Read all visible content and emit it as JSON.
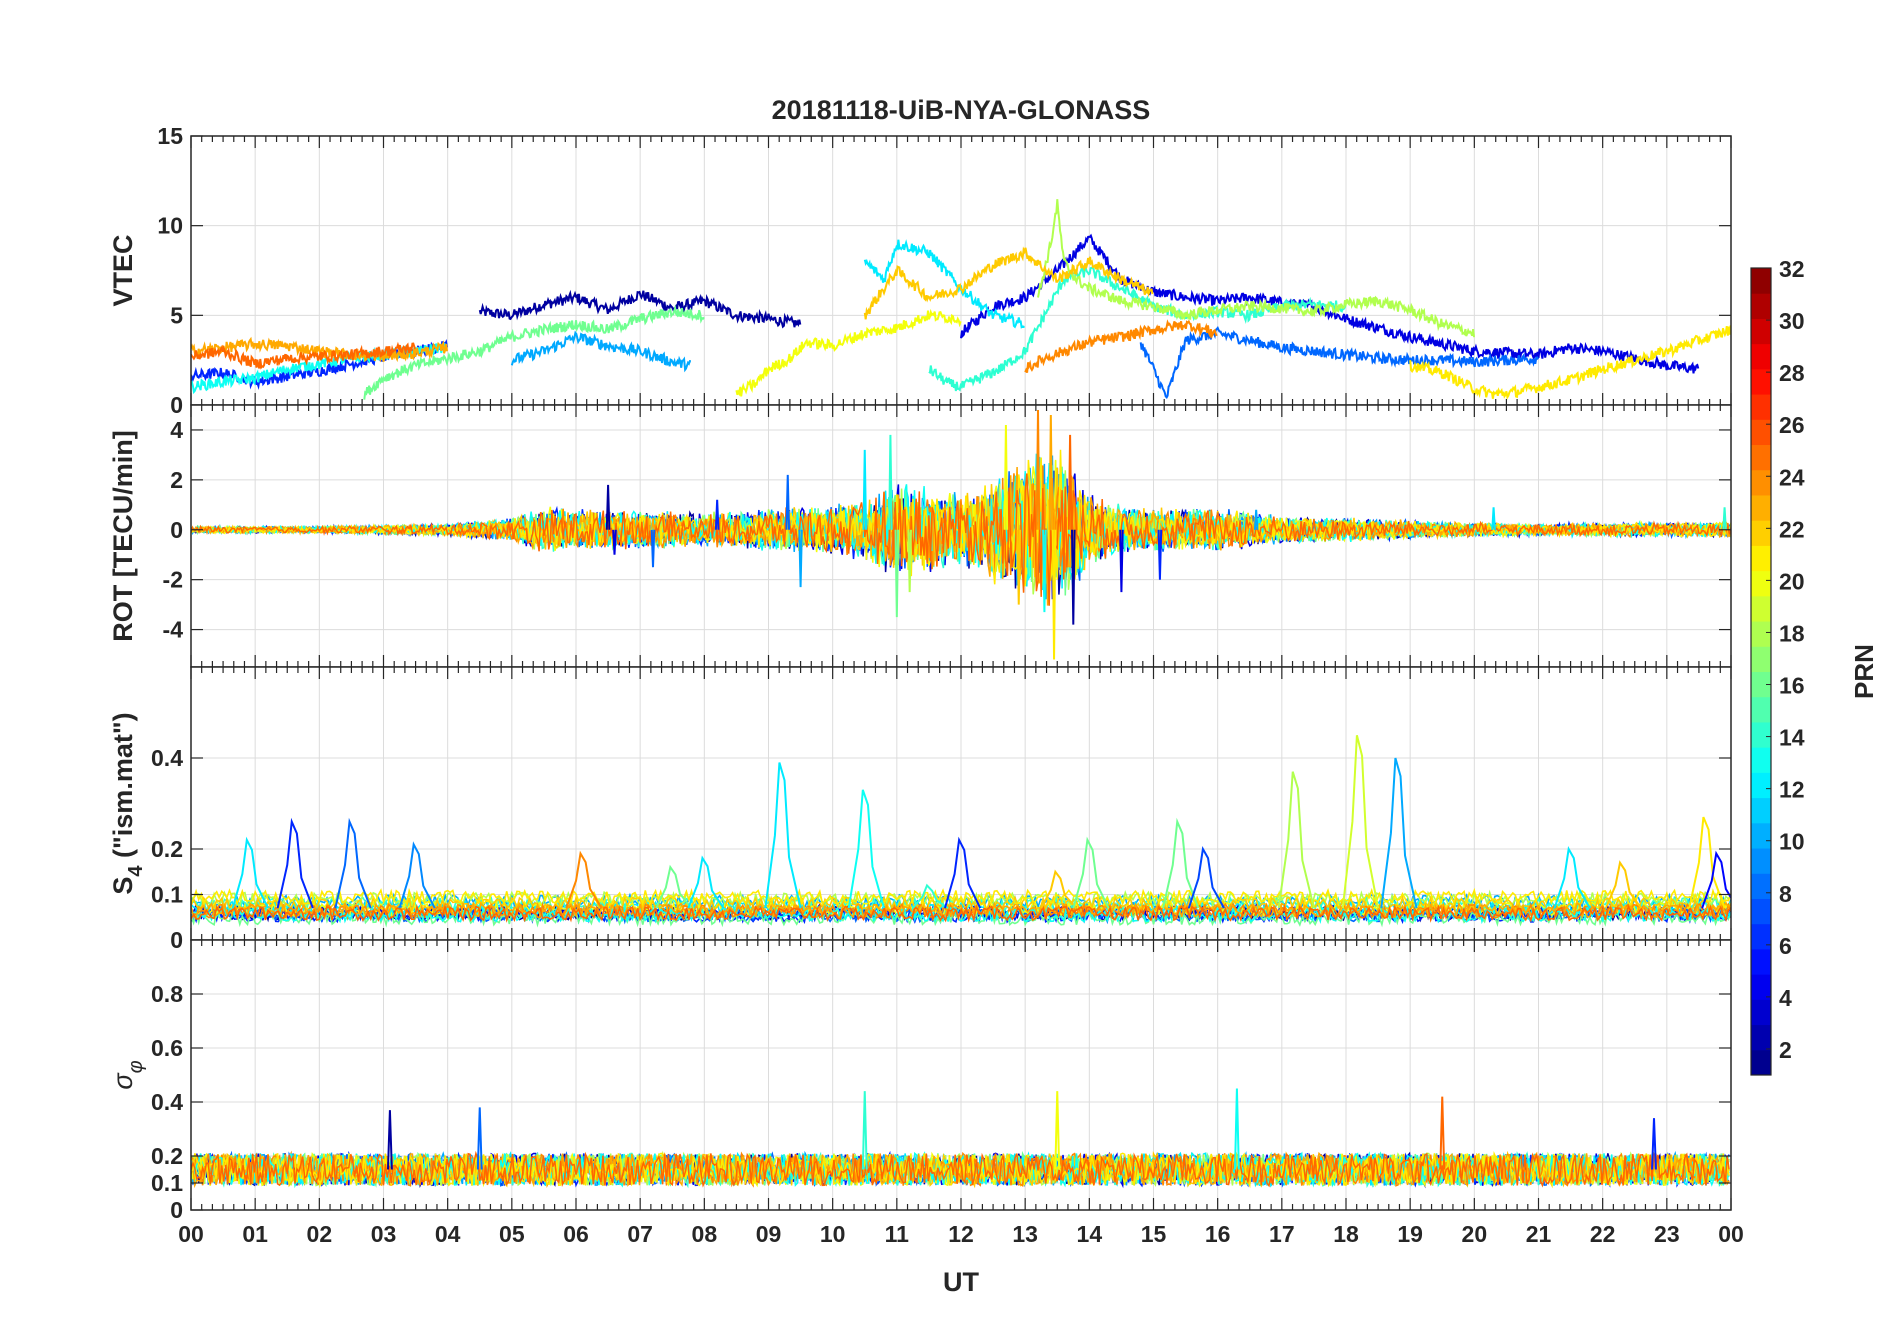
{
  "chart_data": {
    "type": "line",
    "title": "20181118-UiB-NYA-GLONASS",
    "xlabel": "UT",
    "x_ticks": [
      "00",
      "01",
      "02",
      "03",
      "04",
      "05",
      "06",
      "07",
      "08",
      "09",
      "10",
      "11",
      "12",
      "13",
      "14",
      "15",
      "16",
      "17",
      "18",
      "19",
      "20",
      "21",
      "22",
      "23",
      "00"
    ],
    "xlim": [
      0,
      24
    ],
    "grid": true,
    "panels": [
      {
        "id": "vtec",
        "ylabel": "VTEC",
        "ylim": [
          0,
          15
        ],
        "yticks": [
          0,
          5,
          10,
          15
        ],
        "ytick_labels": [
          "0",
          "5",
          "10",
          "15"
        ],
        "series": [
          {
            "prn": 2,
            "x": [
              4.5,
              5,
              5.5,
              6,
              6.5,
              7,
              7.5,
              8,
              8.5,
              9,
              9.5
            ],
            "y": [
              5.2,
              5.0,
              5.6,
              6.0,
              5.3,
              6.2,
              5.4,
              5.8,
              5.0,
              4.8,
              4.5
            ]
          },
          {
            "prn": 4,
            "x": [
              12,
              12.5,
              13,
              13.5,
              14,
              14.5,
              15,
              15.5,
              16,
              16.5,
              17,
              17.5,
              18,
              18.5,
              19,
              19.5,
              20,
              20.5,
              21,
              21.5,
              22,
              22.5,
              23,
              23.5
            ],
            "y": [
              4.0,
              5.5,
              6.0,
              7.5,
              9.3,
              7.0,
              6.3,
              6.0,
              5.8,
              6.0,
              5.7,
              5.5,
              4.8,
              4.3,
              3.8,
              3.4,
              3.0,
              2.9,
              2.8,
              3.2,
              3.0,
              2.6,
              2.2,
              2.0
            ]
          },
          {
            "prn": 6,
            "x": [
              0,
              0.5,
              1,
              1.5,
              2,
              2.5,
              3,
              3.5,
              4
            ],
            "y": [
              1.6,
              1.8,
              1.3,
              1.6,
              1.9,
              2.3,
              2.7,
              3.0,
              3.3
            ]
          },
          {
            "prn": 8,
            "x": [
              14.8,
              15,
              15.2,
              15.5,
              16,
              16.5,
              17,
              17.5,
              18,
              18.5,
              19,
              19.5,
              20,
              20.5,
              21
            ],
            "y": [
              3.5,
              2.0,
              0.4,
              3.6,
              4.0,
              3.6,
              3.2,
              3.0,
              2.8,
              2.6,
              2.5,
              2.5,
              2.4,
              2.5,
              2.6
            ]
          },
          {
            "prn": 10,
            "x": [
              5,
              5.5,
              6,
              6.5,
              7,
              7.5,
              7.8
            ],
            "y": [
              2.5,
              3.0,
              3.8,
              3.3,
              3.0,
              2.4,
              2.2
            ]
          },
          {
            "prn": 12,
            "x": [
              10.5,
              10.8,
              11,
              11.5,
              12,
              12.5,
              13
            ],
            "y": [
              8.0,
              7.0,
              9.0,
              8.5,
              6.5,
              5.0,
              4.5
            ]
          },
          {
            "prn": 13,
            "x": [
              0,
              0.5,
              1,
              1.5,
              2,
              2.5,
              3,
              3.5,
              4
            ],
            "y": [
              1.0,
              1.3,
              1.5,
              2.0,
              2.3,
              2.6,
              2.8,
              3.0,
              3.2
            ]
          },
          {
            "prn": 14,
            "x": [
              11.5,
              11.8,
              12,
              12.3,
              12.6,
              13,
              13.3,
              13.6,
              14,
              14.5,
              15,
              15.5,
              16,
              16.5,
              17,
              17.5,
              18
            ],
            "y": [
              2.0,
              1.2,
              1.0,
              1.5,
              2.0,
              3.0,
              5.0,
              7.0,
              7.5,
              6.5,
              5.5,
              5.0,
              5.2,
              5.0,
              5.5,
              5.6,
              5.5
            ]
          },
          {
            "prn": 16,
            "x": [
              2.7,
              3,
              3.5,
              4,
              4.5,
              5,
              5.5,
              6,
              6.5,
              7,
              7.5,
              8
            ],
            "y": [
              0.6,
              1.5,
              2.2,
              2.6,
              3.0,
              3.8,
              4.2,
              4.5,
              4.2,
              4.8,
              5.2,
              5.0
            ]
          },
          {
            "prn": 18,
            "x": [
              13.2,
              13.4,
              13.5,
              13.6,
              13.8,
              14,
              14.5,
              15,
              15.5,
              16,
              16.5,
              17,
              17.5,
              18,
              18.5,
              19,
              19.5,
              20
            ],
            "y": [
              6.0,
              9.0,
              11.2,
              8.0,
              7.0,
              6.5,
              5.8,
              5.5,
              5.0,
              5.3,
              5.5,
              5.4,
              5.2,
              5.6,
              5.8,
              5.3,
              4.5,
              4.0
            ]
          },
          {
            "prn": 20,
            "x": [
              8.5,
              8.8,
              9,
              9.3,
              9.6,
              10,
              10.5,
              11,
              11.5,
              12
            ],
            "y": [
              0.6,
              1.2,
              2.0,
              2.5,
              3.5,
              3.3,
              4.0,
              4.3,
              5.0,
              4.8
            ]
          },
          {
            "prn": 21,
            "x": [
              19,
              19.5,
              20,
              20.3,
              20.6,
              21,
              21.5,
              22,
              22.5,
              23,
              23.5,
              24
            ],
            "y": [
              2.2,
              1.8,
              0.9,
              0.6,
              0.7,
              1.0,
              1.4,
              2.0,
              2.5,
              3.0,
              3.6,
              4.2
            ]
          },
          {
            "prn": 22,
            "x": [
              10.5,
              11,
              11.5,
              12,
              12.5,
              13,
              13.5,
              14,
              14.5,
              15
            ],
            "y": [
              5.0,
              7.5,
              6.0,
              6.5,
              7.8,
              8.5,
              7.0,
              8.0,
              7.0,
              6.2
            ]
          },
          {
            "prn": 23,
            "x": [
              0,
              0.5,
              1,
              1.5,
              2,
              2.5,
              3,
              3.5,
              4
            ],
            "y": [
              3.0,
              3.2,
              3.4,
              3.3,
              3.0,
              2.8,
              2.7,
              2.9,
              3.2
            ]
          },
          {
            "prn": 24,
            "x": [
              13,
              13.3,
              13.6,
              14,
              14.5,
              15,
              15.5,
              16
            ],
            "y": [
              2.0,
              2.6,
              3.0,
              3.5,
              3.8,
              4.2,
              4.5,
              4.0
            ]
          },
          {
            "prn": 25,
            "x": [
              0,
              0.5,
              1,
              1.5,
              2,
              2.5,
              3,
              3.5
            ],
            "y": [
              2.7,
              3.0,
              2.3,
              2.6,
              2.7,
              2.8,
              3.0,
              3.2
            ]
          }
        ]
      },
      {
        "id": "rot",
        "ylabel": "ROT [TECU/min]",
        "ylim": [
          -5.5,
          5
        ],
        "yticks": [
          -4,
          -2,
          0,
          2,
          4
        ],
        "ytick_labels": [
          "-4",
          "-2",
          "0",
          "2",
          "4"
        ],
        "envelope": {
          "x": [
            0,
            1,
            2,
            3,
            4,
            5,
            5.5,
            6,
            7,
            8,
            9,
            10,
            10.5,
            11,
            11.5,
            12,
            12.5,
            13,
            13.5,
            14,
            14.5,
            15,
            16,
            17,
            18,
            19,
            20,
            21,
            22,
            23,
            24
          ],
          "amp": [
            0.15,
            0.15,
            0.15,
            0.2,
            0.25,
            0.5,
            1.0,
            0.9,
            0.8,
            0.7,
            0.9,
            1.0,
            1.4,
            2.0,
            1.8,
            1.5,
            2.2,
            3.0,
            3.5,
            1.5,
            1.0,
            0.9,
            0.9,
            0.6,
            0.5,
            0.4,
            0.3,
            0.25,
            0.3,
            0.3,
            0.35
          ]
        },
        "spikes": [
          {
            "x": 6.5,
            "y": 1.8
          },
          {
            "x": 6.6,
            "y": -1.0
          },
          {
            "x": 8.2,
            "y": 1.2
          },
          {
            "x": 9.3,
            "y": 2.2
          },
          {
            "x": 9.5,
            "y": -2.3
          },
          {
            "x": 10.5,
            "y": 3.2
          },
          {
            "x": 10.9,
            "y": 3.8
          },
          {
            "x": 11.0,
            "y": -3.5
          },
          {
            "x": 11.2,
            "y": -2.5
          },
          {
            "x": 12.7,
            "y": 4.2
          },
          {
            "x": 12.9,
            "y": -3.0
          },
          {
            "x": 13.2,
            "y": 4.8
          },
          {
            "x": 13.3,
            "y": -3.3
          },
          {
            "x": 13.4,
            "y": 4.6
          },
          {
            "x": 13.45,
            "y": -5.2
          },
          {
            "x": 13.7,
            "y": 3.8
          },
          {
            "x": 13.75,
            "y": -3.8
          },
          {
            "x": 14.5,
            "y": -2.5
          },
          {
            "x": 15.1,
            "y": -2.0
          },
          {
            "x": 7.2,
            "y": -1.5
          },
          {
            "x": 16.6,
            "y": 0.8
          },
          {
            "x": 20.3,
            "y": 0.9
          },
          {
            "x": 23.9,
            "y": 0.9
          }
        ]
      },
      {
        "id": "s4",
        "ylabel": "S4 (\"ism.mat\")",
        "ylabel_parts": {
          "base": "S",
          "sub": "4",
          "rest": " (\"ism.mat\")"
        },
        "ylim": [
          0,
          0.6
        ],
        "yticks": [
          0,
          0.1,
          0.2,
          0.4
        ],
        "ytick_labels": [
          "0",
          "0.1",
          "0.2",
          "0.4"
        ],
        "baseline": [
          0.04,
          0.09
        ],
        "peaks": [
          {
            "x": 0.9,
            "y": 0.22,
            "prn": 12
          },
          {
            "x": 1.6,
            "y": 0.26,
            "prn": 6
          },
          {
            "x": 2.5,
            "y": 0.26,
            "prn": 8
          },
          {
            "x": 3.5,
            "y": 0.21,
            "prn": 9
          },
          {
            "x": 6.1,
            "y": 0.19,
            "prn": 24
          },
          {
            "x": 7.5,
            "y": 0.16,
            "prn": 16
          },
          {
            "x": 8.0,
            "y": 0.18,
            "prn": 12
          },
          {
            "x": 9.2,
            "y": 0.39,
            "prn": 12
          },
          {
            "x": 10.5,
            "y": 0.33,
            "prn": 13
          },
          {
            "x": 11.5,
            "y": 0.12,
            "prn": 14
          },
          {
            "x": 12.0,
            "y": 0.22,
            "prn": 6
          },
          {
            "x": 13.5,
            "y": 0.15,
            "prn": 22
          },
          {
            "x": 14.0,
            "y": 0.22,
            "prn": 16
          },
          {
            "x": 15.4,
            "y": 0.26,
            "prn": 16
          },
          {
            "x": 15.8,
            "y": 0.2,
            "prn": 7
          },
          {
            "x": 17.2,
            "y": 0.37,
            "prn": 18
          },
          {
            "x": 18.2,
            "y": 0.45,
            "prn": 19
          },
          {
            "x": 18.8,
            "y": 0.4,
            "prn": 10
          },
          {
            "x": 21.5,
            "y": 0.2,
            "prn": 12
          },
          {
            "x": 22.3,
            "y": 0.17,
            "prn": 22
          },
          {
            "x": 23.6,
            "y": 0.27,
            "prn": 21
          },
          {
            "x": 23.8,
            "y": 0.19,
            "prn": 5
          }
        ]
      },
      {
        "id": "sigma",
        "ylabel": "σφ",
        "ylabel_parts": {
          "base": "σ",
          "sub": "φ"
        },
        "ylim": [
          0,
          1
        ],
        "yticks": [
          0,
          0.1,
          0.2,
          0.4,
          0.6,
          0.8
        ],
        "ytick_labels": [
          "0",
          "0.1",
          "0.2",
          "0.4",
          "0.6",
          "0.8"
        ],
        "band": {
          "center": 0.15,
          "amp": 0.06
        },
        "peaks": [
          {
            "x": 3.1,
            "y": 0.37
          },
          {
            "x": 4.5,
            "y": 0.38
          },
          {
            "x": 10.5,
            "y": 0.44
          },
          {
            "x": 13.5,
            "y": 0.44
          },
          {
            "x": 16.3,
            "y": 0.45
          },
          {
            "x": 19.5,
            "y": 0.42
          },
          {
            "x": 22.8,
            "y": 0.34
          }
        ]
      }
    ],
    "colorbar": {
      "label": "PRN",
      "range": [
        1,
        32
      ],
      "colormap": "jet",
      "levels": 32,
      "ticks": [
        2,
        4,
        6,
        8,
        10,
        12,
        14,
        16,
        18,
        20,
        22,
        24,
        26,
        28,
        30,
        32
      ]
    }
  }
}
